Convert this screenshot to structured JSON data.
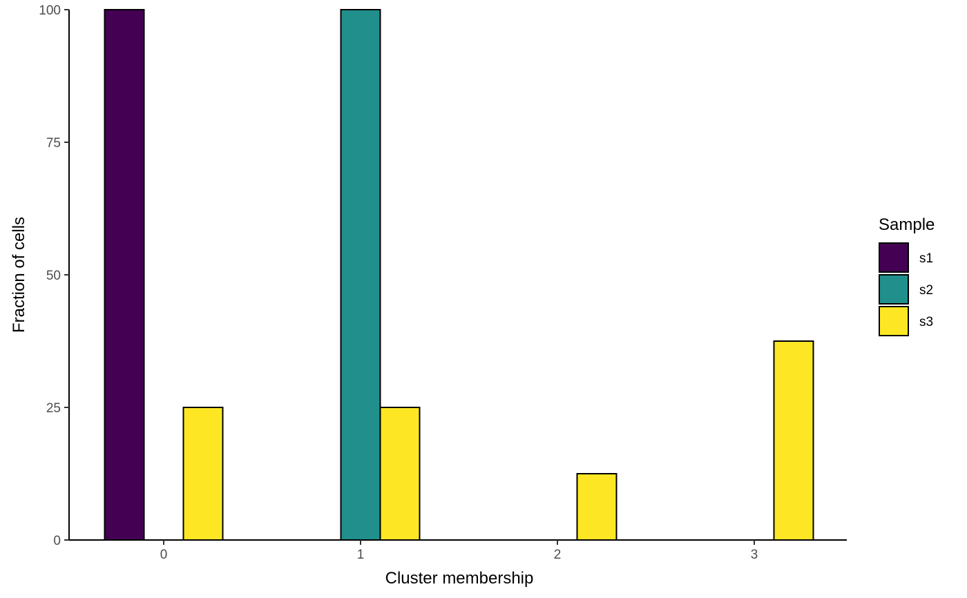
{
  "chart_data": {
    "type": "bar",
    "xlabel": "Cluster membership",
    "ylabel": "Fraction of cells",
    "categories": [
      "0",
      "1",
      "2",
      "3"
    ],
    "y_ticks": [
      "0",
      "25",
      "50",
      "75",
      "100"
    ],
    "ylim": [
      0,
      100
    ],
    "legend": {
      "title": "Sample",
      "placement": "right"
    },
    "series": [
      {
        "name": "s1",
        "color": "#440154",
        "values": [
          100,
          0,
          0,
          0
        ]
      },
      {
        "name": "s2",
        "color": "#21908C",
        "values": [
          0,
          100,
          0,
          0
        ]
      },
      {
        "name": "s3",
        "color": "#FDE725",
        "values": [
          25,
          25,
          12.5,
          37.5
        ]
      }
    ],
    "grid": false
  }
}
